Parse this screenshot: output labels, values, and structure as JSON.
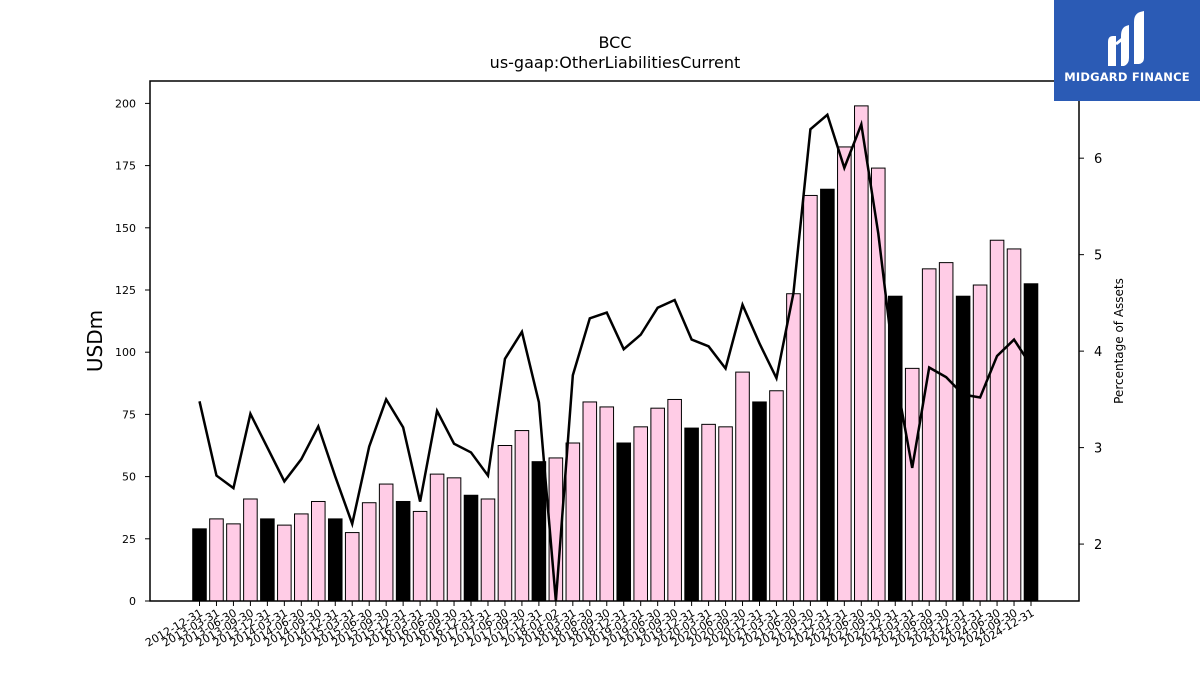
{
  "brand": {
    "name": "MIDGARD FINANCE",
    "background": "#2b5bb5",
    "icon": "midgard-logo-icon"
  },
  "colors": {
    "bar_quarter": "#ffcce6",
    "bar_year_end": "#000000",
    "bar_edge": "#000000",
    "line": "#000000"
  },
  "chart_data": {
    "type": "bar",
    "title": "BCC",
    "subtitle": "us-gaap:OtherLiabilitiesCurrent",
    "ylabel": "USDm",
    "y2label": "Percentage of Assets",
    "ylim": [
      0,
      209
    ],
    "y2lim": [
      1.41,
      6.8
    ],
    "yticks": [
      0,
      25,
      50,
      75,
      100,
      125,
      150,
      175,
      200
    ],
    "y2ticks": [
      2,
      3,
      4,
      5,
      6
    ],
    "grid": false,
    "categories": [
      "2012-12-31",
      "2013-03-31",
      "2013-06-30",
      "2013-09-30",
      "2013-12-31",
      "2014-03-31",
      "2014-06-30",
      "2014-09-30",
      "2014-12-31",
      "2015-03-31",
      "2015-06-30",
      "2015-09-30",
      "2015-12-31",
      "2016-03-31",
      "2016-06-30",
      "2016-09-30",
      "2016-12-31",
      "2017-03-31",
      "2017-06-30",
      "2017-09-30",
      "2017-12-31",
      "2018-01-02",
      "2018-03-31",
      "2018-06-30",
      "2018-09-30",
      "2018-12-31",
      "2019-03-31",
      "2019-06-30",
      "2019-09-30",
      "2019-12-31",
      "2020-03-31",
      "2020-06-30",
      "2020-09-30",
      "2020-12-31",
      "2021-03-31",
      "2021-06-30",
      "2021-09-30",
      "2021-12-31",
      "2022-03-31",
      "2022-06-30",
      "2022-09-30",
      "2022-12-31",
      "2023-03-31",
      "2023-06-30",
      "2023-09-30",
      "2023-12-31",
      "2024-03-31",
      "2024-06-30",
      "2024-09-30",
      "2024-12-31"
    ],
    "series": [
      {
        "kind": "bar",
        "axis": "left",
        "values": [
          29,
          33,
          31,
          41,
          33,
          30.5,
          35,
          40,
          33,
          27.5,
          39.5,
          47,
          40,
          36,
          51,
          49.5,
          42.5,
          41,
          62.5,
          68.5,
          56,
          57.5,
          63.5,
          80,
          78,
          63.5,
          70,
          77.5,
          81,
          69.5,
          71,
          70,
          92,
          80,
          84.5,
          123.5,
          163,
          165.5,
          182.5,
          199,
          174,
          122.5,
          93.5,
          133.5,
          136,
          122.5,
          127,
          145,
          141.5,
          127.5
        ]
      },
      {
        "kind": "line",
        "axis": "right",
        "values": [
          3.48,
          2.71,
          2.58,
          3.35,
          3.0,
          2.65,
          2.88,
          3.22,
          2.7,
          2.21,
          3.01,
          3.5,
          3.21,
          2.44,
          3.38,
          3.04,
          2.95,
          2.71,
          3.92,
          4.2,
          3.47,
          1.41,
          3.75,
          4.34,
          4.4,
          4.02,
          4.17,
          4.45,
          4.53,
          4.12,
          4.05,
          3.82,
          4.48,
          4.08,
          3.72,
          4.6,
          6.3,
          6.45,
          5.9,
          6.35,
          5.22,
          3.76,
          2.79,
          3.83,
          3.73,
          3.55,
          3.52,
          3.95,
          4.12,
          3.85
        ]
      }
    ]
  }
}
